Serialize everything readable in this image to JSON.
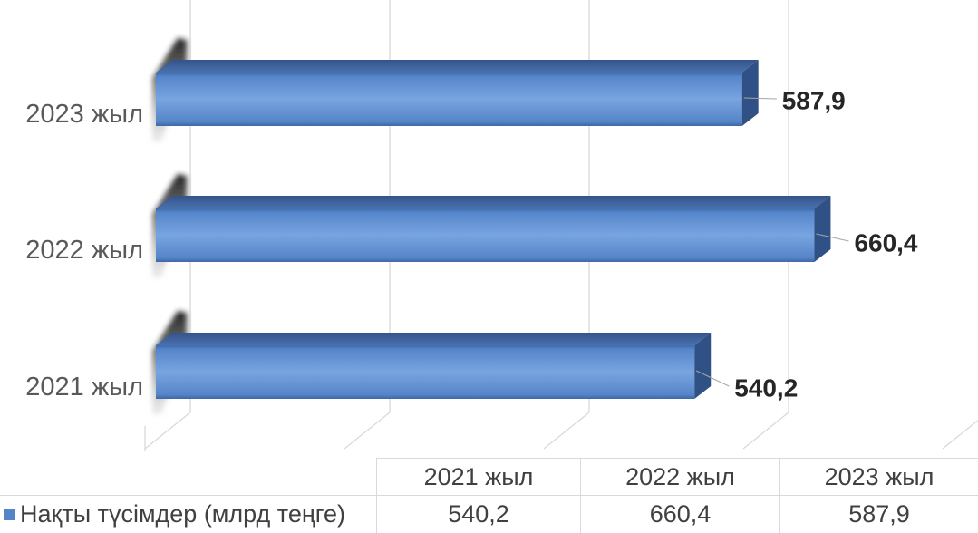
{
  "chart_data": {
    "type": "bar",
    "orientation": "horizontal",
    "style": "3d",
    "categories": [
      "2021 жыл",
      "2022 жыл",
      "2023 жыл"
    ],
    "series": [
      {
        "name": "Нақты түсімдер (млрд теңге)",
        "values": [
          540.2,
          660.4,
          587.9
        ],
        "color": "#5585c9"
      }
    ],
    "data_labels": [
      "540,2",
      "660,4",
      "587,9"
    ],
    "xlim": [
      0,
      800
    ],
    "x_grid_step": 200,
    "grid": true,
    "data_table": true,
    "legend": "data-table"
  }
}
